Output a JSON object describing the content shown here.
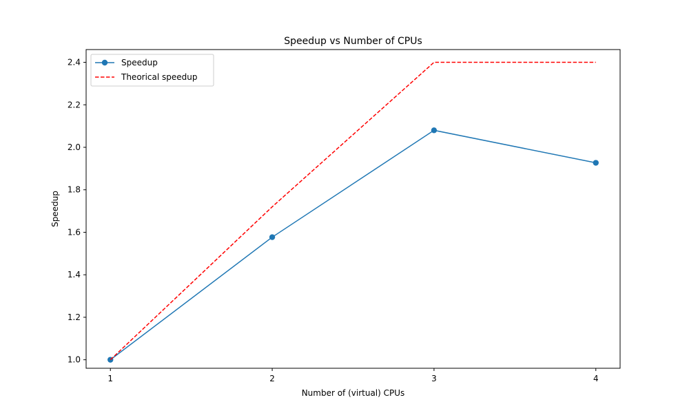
{
  "chart_data": {
    "type": "line",
    "title": "Speedup vs Number of CPUs",
    "xlabel": "Number of (virtual) CPUs",
    "ylabel": "Speedup",
    "x": [
      1,
      2,
      3,
      4
    ],
    "xlim": [
      0.85,
      4.15
    ],
    "ylim": [
      0.96,
      2.46
    ],
    "xticks": [
      1,
      2,
      3,
      4
    ],
    "xtick_labels": [
      "1",
      "2",
      "3",
      "4"
    ],
    "yticks": [
      1.0,
      1.2,
      1.4,
      1.6,
      1.8,
      2.0,
      2.2,
      2.4
    ],
    "ytick_labels": [
      "1.0",
      "1.2",
      "1.4",
      "1.6",
      "1.8",
      "2.0",
      "2.2",
      "2.4"
    ],
    "grid": false,
    "legend_position": "upper-left",
    "series": [
      {
        "name": "Speedup",
        "values": [
          1.0,
          1.577,
          2.08,
          1.927
        ],
        "color": "#1f77b4",
        "linestyle": "solid",
        "marker": "circle"
      },
      {
        "name": "Theorical speedup",
        "values": [
          1.0,
          1.72,
          2.4,
          2.4
        ],
        "color": "#ff0000",
        "linestyle": "dashed",
        "marker": "none"
      }
    ]
  }
}
